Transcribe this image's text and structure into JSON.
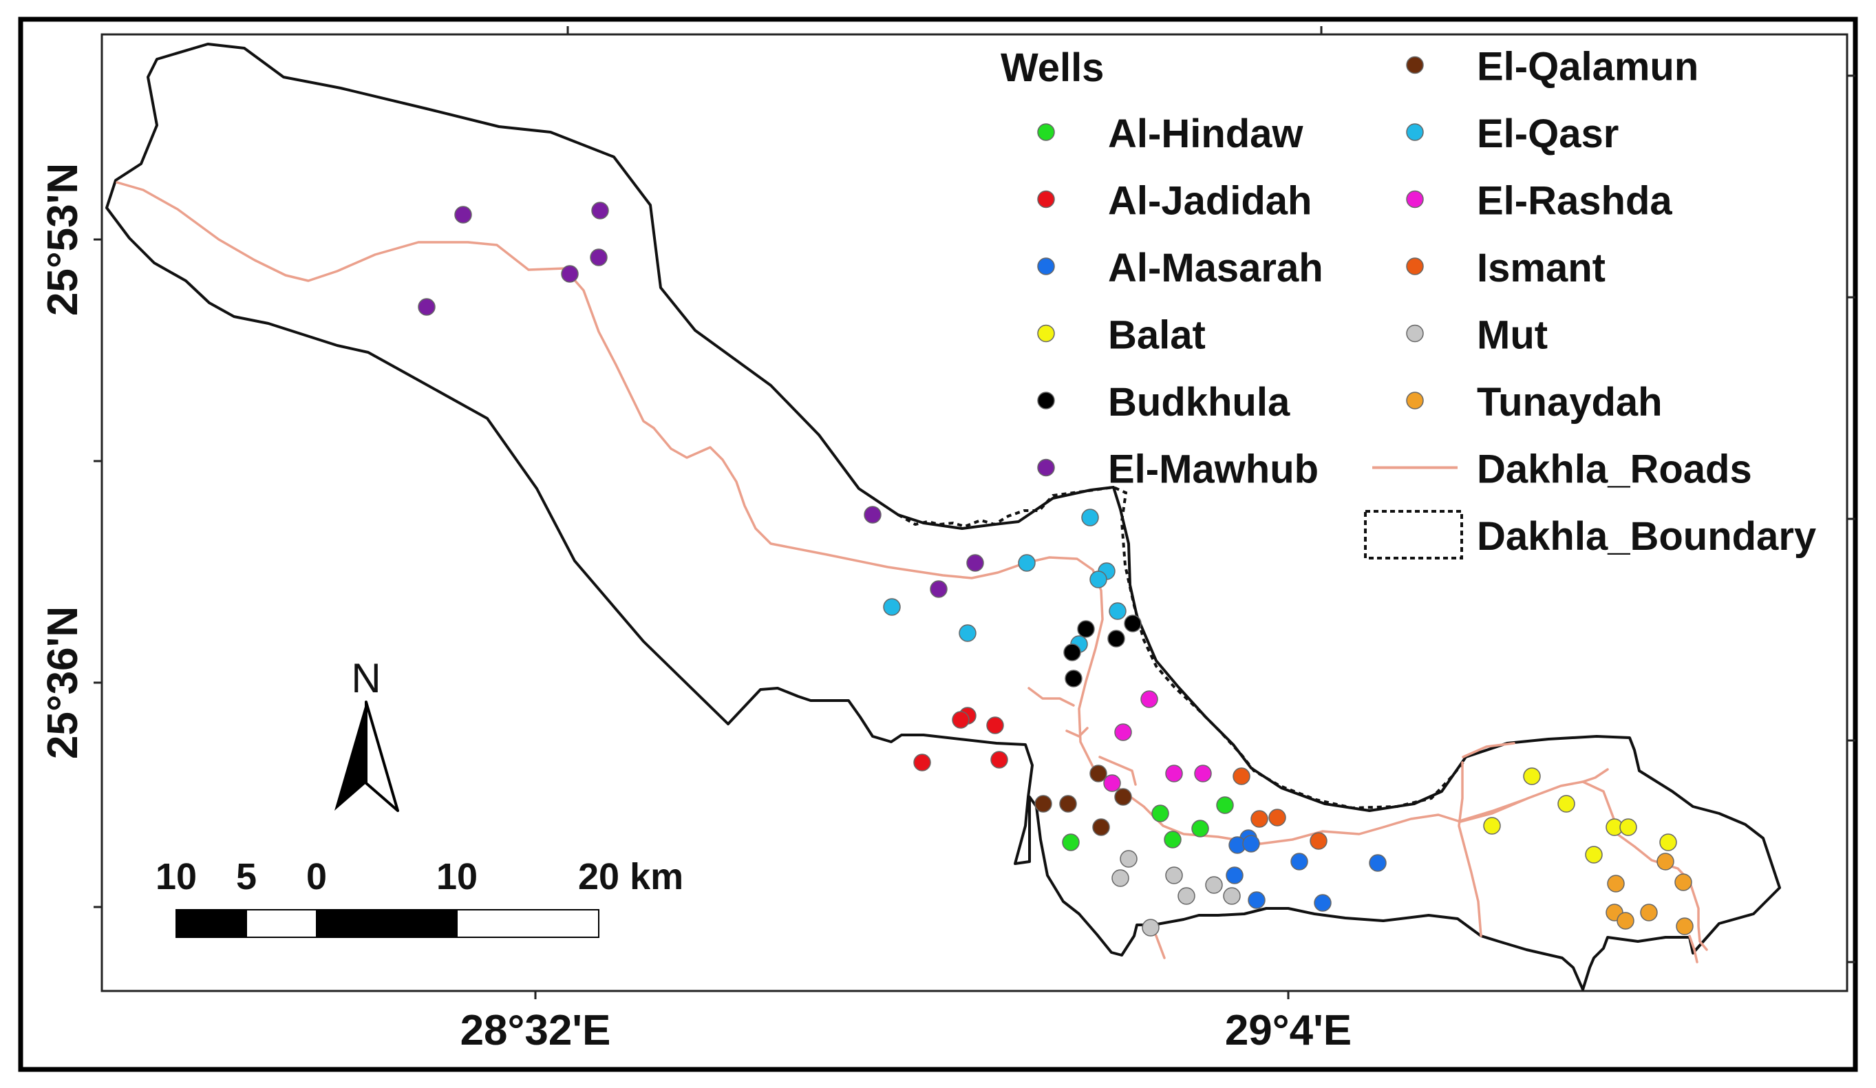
{
  "axes": {
    "lat_labels": [
      {
        "label": "25°53'N",
        "lat": 25.883
      },
      {
        "label": "25°36'N",
        "lat": 25.6
      }
    ],
    "lon_labels": [
      {
        "label": "28°32'E",
        "lon": 28.533
      },
      {
        "label": "29°4'E",
        "lon": 29.067
      }
    ]
  },
  "north_arrow": {
    "label": "N"
  },
  "scale_bar": {
    "ticks": [
      "10",
      "5",
      "0",
      "10",
      "20 km"
    ]
  },
  "legend": {
    "title": "Wells",
    "items": [
      {
        "label": "Al-Hindaw",
        "color": "#22dd22",
        "kind": "point"
      },
      {
        "label": "Al-Jadidah",
        "color": "#e8121b",
        "kind": "point"
      },
      {
        "label": "Al-Masarah",
        "color": "#1a6fe8",
        "kind": "point"
      },
      {
        "label": "Balat",
        "color": "#f4f410",
        "kind": "point"
      },
      {
        "label": "Budkhula",
        "color": "#000000",
        "kind": "point"
      },
      {
        "label": "El-Mawhub",
        "color": "#7a1ea0",
        "kind": "point"
      },
      {
        "label": "El-Qalamun",
        "color": "#6b2d0c",
        "kind": "point"
      },
      {
        "label": "El-Qasr",
        "color": "#22b8e6",
        "kind": "point"
      },
      {
        "label": "El-Rashda",
        "color": "#ee1ad4",
        "kind": "point"
      },
      {
        "label": "Ismant",
        "color": "#ea5a14",
        "kind": "point"
      },
      {
        "label": "Mut",
        "color": "#c6c6c6",
        "kind": "point"
      },
      {
        "label": "Tunaydah",
        "color": "#f0a028",
        "kind": "point"
      },
      {
        "label": "Dakhla_Roads",
        "color": "#eba08c",
        "kind": "line"
      },
      {
        "label": "Dakhla_Boundary",
        "color": "#111111",
        "kind": "dashed-box"
      }
    ]
  },
  "colors": {
    "boundary": "#111111",
    "road": "#eba08c",
    "point_outline": "#777777"
  }
}
